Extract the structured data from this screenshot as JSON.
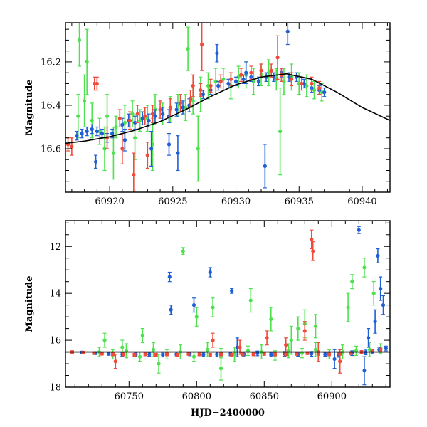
{
  "colors": {
    "blue": "#1f5fd6",
    "green": "#4de24d",
    "red": "#f04a3a",
    "model": "#000000"
  },
  "chart_data": [
    {
      "type": "scatter",
      "title": "",
      "xlabel": "",
      "ylabel": "Magnitude",
      "xlim": [
        60916.5,
        60942.2
      ],
      "ylim": [
        16.8,
        16.02
      ],
      "y_inverted": true,
      "xticks": [
        60920,
        60925,
        60930,
        60935,
        60940
      ],
      "yticks": [
        16.2,
        16.4,
        16.6
      ],
      "grid": false,
      "series": [
        {
          "color": "blue",
          "x": [
            60917.4,
            60917.8,
            60918.2,
            60918.6,
            60919.0,
            60919.4,
            60919.8,
            60920.2,
            60921.0,
            60921.5,
            60922.0,
            60922.6,
            60923.1,
            60923.6,
            60924.2,
            60924.7,
            60925.3,
            60925.8,
            60926.3,
            60927.4,
            60928.0,
            60928.6,
            60929.4,
            60930.0,
            60930.6,
            60931.2,
            60931.8,
            60932.4,
            60933.0,
            60933.6,
            60934.2,
            60934.8,
            60935.4,
            60936.0,
            60936.6,
            60937.0,
            60918.9,
            60921.2,
            60923.3,
            60924.7,
            60925.4,
            60928.5,
            60930.8,
            60932.3,
            60934.1
          ],
          "y": [
            16.54,
            16.53,
            16.52,
            16.51,
            16.52,
            16.53,
            16.55,
            16.53,
            16.49,
            16.47,
            16.48,
            16.46,
            16.47,
            16.45,
            16.44,
            16.45,
            16.42,
            16.41,
            16.4,
            16.35,
            16.33,
            16.31,
            16.3,
            16.29,
            16.28,
            16.27,
            16.29,
            16.27,
            16.27,
            16.25,
            16.27,
            16.27,
            16.3,
            16.32,
            16.33,
            16.34,
            16.66,
            16.56,
            16.6,
            16.58,
            16.62,
            16.16,
            16.25,
            16.68,
            16.06
          ],
          "yerr": [
            0.02,
            0.02,
            0.02,
            0.02,
            0.02,
            0.02,
            0.02,
            0.02,
            0.03,
            0.03,
            0.03,
            0.03,
            0.03,
            0.03,
            0.03,
            0.03,
            0.03,
            0.03,
            0.03,
            0.02,
            0.02,
            0.02,
            0.02,
            0.02,
            0.02,
            0.02,
            0.02,
            0.02,
            0.02,
            0.02,
            0.02,
            0.02,
            0.02,
            0.02,
            0.02,
            0.02,
            0.03,
            0.05,
            0.08,
            0.05,
            0.08,
            0.04,
            0.05,
            0.1,
            0.06
          ]
        },
        {
          "color": "green",
          "x": [
            60917.5,
            60918.0,
            60918.6,
            60919.2,
            60919.8,
            60920.5,
            60921.2,
            60921.8,
            60922.4,
            60923.0,
            60923.6,
            60924.2,
            60924.8,
            60925.4,
            60926.0,
            60926.6,
            60927.2,
            60927.8,
            60928.4,
            60929.0,
            60929.6,
            60930.2,
            60930.8,
            60931.4,
            60932.0,
            60932.6,
            60933.2,
            60933.8,
            60934.4,
            60935.0,
            60935.6,
            60936.2,
            60936.8,
            60917.6,
            60918.2,
            60919.6,
            60920.3,
            60922.0,
            60923.4,
            60926.2,
            60927.0,
            60933.5
          ],
          "y": [
            16.45,
            16.38,
            16.47,
            16.52,
            16.45,
            16.5,
            16.48,
            16.44,
            16.47,
            16.46,
            16.42,
            16.44,
            16.42,
            16.4,
            16.41,
            16.38,
            16.35,
            16.31,
            16.29,
            16.28,
            16.31,
            16.27,
            16.26,
            16.29,
            16.26,
            16.25,
            16.28,
            16.29,
            16.27,
            16.3,
            16.31,
            16.33,
            16.34,
            16.1,
            16.2,
            16.6,
            16.62,
            16.55,
            16.58,
            16.14,
            16.6,
            16.52
          ],
          "yerr": [
            0.1,
            0.12,
            0.08,
            0.06,
            0.1,
            0.05,
            0.08,
            0.06,
            0.05,
            0.06,
            0.07,
            0.05,
            0.06,
            0.05,
            0.06,
            0.06,
            0.08,
            0.06,
            0.06,
            0.05,
            0.06,
            0.05,
            0.06,
            0.06,
            0.05,
            0.06,
            0.05,
            0.06,
            0.06,
            0.05,
            0.05,
            0.04,
            0.04,
            0.12,
            0.15,
            0.1,
            0.12,
            0.1,
            0.12,
            0.1,
            0.15,
            0.2
          ]
        },
        {
          "color": "red",
          "x": [
            60916.7,
            60917.0,
            60918.8,
            60919.8,
            60920.8,
            60921.6,
            60922.2,
            60922.8,
            60923.4,
            60924.0,
            60924.8,
            60925.6,
            60926.4,
            60927.2,
            60928.0,
            60928.8,
            60929.6,
            60930.4,
            60931.2,
            60932.0,
            60932.8,
            60933.6,
            60934.4,
            60935.2,
            60936.0,
            60936.6,
            60919.0,
            60921.0,
            60921.9,
            60923.0,
            60926.6,
            60927.3,
            60933.3
          ],
          "y": [
            16.58,
            16.59,
            16.3,
            16.55,
            16.46,
            16.47,
            16.44,
            16.45,
            16.44,
            16.42,
            16.41,
            16.39,
            16.37,
            16.33,
            16.31,
            16.29,
            16.28,
            16.26,
            16.25,
            16.24,
            16.24,
            16.26,
            16.28,
            16.3,
            16.3,
            16.32,
            16.3,
            16.6,
            16.72,
            16.63,
            16.31,
            16.12,
            16.18
          ],
          "yerr": [
            0.03,
            0.04,
            0.03,
            0.05,
            0.04,
            0.04,
            0.04,
            0.04,
            0.04,
            0.04,
            0.04,
            0.04,
            0.04,
            0.03,
            0.03,
            0.03,
            0.03,
            0.03,
            0.03,
            0.03,
            0.03,
            0.03,
            0.03,
            0.03,
            0.03,
            0.03,
            0.03,
            0.07,
            0.1,
            0.06,
            0.05,
            0.12,
            0.1
          ]
        }
      ],
      "model_curve": {
        "color": "model",
        "x": [
          60916.5,
          60918,
          60920,
          60922,
          60924,
          60926,
          60928,
          60930,
          60932,
          60934,
          60936,
          60938,
          60940,
          60942.2
        ],
        "y": [
          16.575,
          16.565,
          16.545,
          16.515,
          16.475,
          16.42,
          16.36,
          16.305,
          16.27,
          16.255,
          16.28,
          16.34,
          16.41,
          16.47
        ]
      }
    },
    {
      "type": "scatter",
      "title": "",
      "xlabel": "HJD−2400000",
      "ylabel": "Magnitude",
      "xlim": [
        60703,
        60943
      ],
      "ylim": [
        18,
        10.9
      ],
      "y_inverted": true,
      "xticks": [
        60750,
        60800,
        60850,
        60900
      ],
      "yticks": [
        12,
        14,
        16,
        18
      ],
      "grid": false,
      "series": [
        {
          "color": "blue",
          "x": [
            60715,
            60725,
            60735,
            60745,
            60755,
            60765,
            60775,
            60785,
            60795,
            60805,
            60815,
            60825,
            60835,
            60845,
            60855,
            60865,
            60875,
            60885,
            60895,
            60905,
            60915,
            60925,
            60930,
            60935,
            60940,
            60780,
            60781,
            60798,
            60810,
            60826,
            60830,
            60902,
            60920,
            60924,
            60927,
            60932,
            60934,
            60936,
            60938
          ],
          "y": [
            16.52,
            16.55,
            16.58,
            16.6,
            16.62,
            16.6,
            16.63,
            16.6,
            16.58,
            16.62,
            16.6,
            16.58,
            16.6,
            16.56,
            16.62,
            16.58,
            16.6,
            16.58,
            16.6,
            16.62,
            16.55,
            16.52,
            16.48,
            16.4,
            16.35,
            13.3,
            14.7,
            14.5,
            13.1,
            13.9,
            16.3,
            16.8,
            11.3,
            17.3,
            15.9,
            15.2,
            12.4,
            13.8,
            14.5
          ],
          "yerr": [
            0.05,
            0.06,
            0.06,
            0.08,
            0.08,
            0.08,
            0.08,
            0.1,
            0.08,
            0.08,
            0.1,
            0.08,
            0.1,
            0.1,
            0.08,
            0.1,
            0.08,
            0.1,
            0.08,
            0.1,
            0.1,
            0.1,
            0.1,
            0.1,
            0.1,
            0.2,
            0.2,
            0.3,
            0.2,
            0.1,
            0.4,
            0.4,
            0.15,
            0.6,
            0.4,
            0.5,
            0.3,
            0.5,
            0.4
          ]
        },
        {
          "color": "green",
          "x": [
            60728,
            60738,
            60748,
            60758,
            60768,
            60778,
            60788,
            60798,
            60808,
            60818,
            60828,
            60838,
            60848,
            60858,
            60868,
            60878,
            60888,
            60898,
            60908,
            60918,
            60928,
            60936,
            60732,
            60745,
            60760,
            60772,
            60790,
            60800,
            60812,
            60818,
            60840,
            60855,
            60870,
            60875,
            60880,
            60888,
            60912,
            60915,
            60924,
            60931
          ],
          "y": [
            16.5,
            16.6,
            16.45,
            16.7,
            16.4,
            16.6,
            16.5,
            16.7,
            16.4,
            16.55,
            16.6,
            16.45,
            16.5,
            16.65,
            16.45,
            16.55,
            16.4,
            16.6,
            16.5,
            16.45,
            16.4,
            16.35,
            16.0,
            16.3,
            15.8,
            17.0,
            12.2,
            15.0,
            14.6,
            17.2,
            14.3,
            15.1,
            16.0,
            15.5,
            15.3,
            15.4,
            14.6,
            13.5,
            12.9,
            14.0
          ],
          "yerr": [
            0.2,
            0.2,
            0.3,
            0.2,
            0.3,
            0.2,
            0.3,
            0.2,
            0.3,
            0.2,
            0.3,
            0.2,
            0.3,
            0.2,
            0.3,
            0.2,
            0.3,
            0.2,
            0.3,
            0.2,
            0.3,
            0.2,
            0.3,
            0.3,
            0.3,
            0.4,
            0.15,
            0.4,
            0.4,
            0.5,
            0.5,
            0.5,
            0.6,
            0.5,
            0.6,
            0.5,
            0.6,
            0.3,
            0.4,
            0.5
          ]
        },
        {
          "color": "red",
          "x": [
            60708,
            60716,
            60724,
            60730,
            60738,
            60746,
            60754,
            60762,
            60770,
            60778,
            60786,
            60794,
            60802,
            60810,
            60818,
            60826,
            60834,
            60842,
            60850,
            60858,
            60866,
            60874,
            60882,
            60890,
            60898,
            60906,
            60914,
            60922,
            60930,
            60936,
            60740,
            60812,
            60832,
            60852,
            60866,
            60885,
            60886,
            60890,
            60880,
            60906
          ],
          "y": [
            16.5,
            16.52,
            16.55,
            16.58,
            16.6,
            16.6,
            16.62,
            16.6,
            16.62,
            16.6,
            16.62,
            16.58,
            16.6,
            16.62,
            16.6,
            16.62,
            16.6,
            16.6,
            16.58,
            16.6,
            16.6,
            16.58,
            16.55,
            16.58,
            16.6,
            16.58,
            16.55,
            16.5,
            16.45,
            16.4,
            16.9,
            16.0,
            16.3,
            15.9,
            16.2,
            11.7,
            12.2,
            16.5,
            15.6,
            16.9
          ],
          "yerr": [
            0.05,
            0.05,
            0.05,
            0.05,
            0.06,
            0.06,
            0.06,
            0.06,
            0.06,
            0.06,
            0.06,
            0.06,
            0.06,
            0.06,
            0.06,
            0.06,
            0.06,
            0.06,
            0.06,
            0.06,
            0.06,
            0.06,
            0.06,
            0.06,
            0.06,
            0.06,
            0.06,
            0.06,
            0.06,
            0.06,
            0.3,
            0.3,
            0.3,
            0.3,
            0.3,
            0.4,
            0.4,
            0.4,
            0.4,
            0.5
          ]
        }
      ],
      "model_curve": {
        "color": "model",
        "x": [
          60703,
          60943
        ],
        "y": [
          16.5,
          16.5
        ]
      }
    }
  ]
}
